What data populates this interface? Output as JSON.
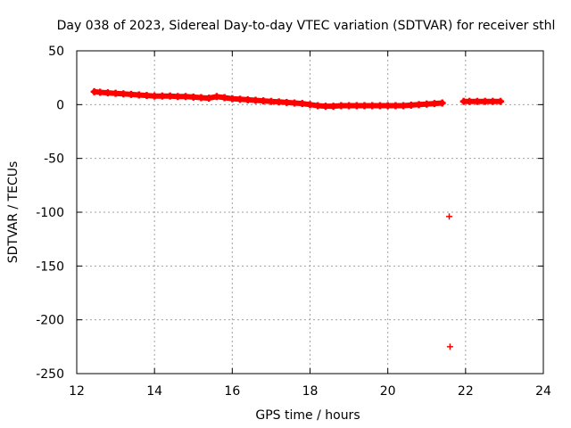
{
  "chart_data": {
    "type": "scatter",
    "title": "Day 038 of 2023, Sidereal Day-to-day VTEC variation (SDTVAR) for receiver sthl",
    "xlabel": "GPS time / hours",
    "ylabel": "SDTVAR / TECUs",
    "xlim": [
      12,
      24
    ],
    "ylim": [
      -250,
      50
    ],
    "x_ticks": [
      12,
      14,
      16,
      18,
      20,
      22,
      24
    ],
    "y_ticks": [
      50,
      0,
      -50,
      -100,
      -150,
      -200,
      -250
    ],
    "x_tick_labels": [
      "12",
      "14",
      "16",
      "18",
      "20",
      "22",
      "24"
    ],
    "y_tick_labels": [
      "50",
      "0",
      "-50",
      "-100",
      "-150",
      "-200",
      "-250"
    ],
    "grid": true,
    "marker": "+",
    "color": "#ff0000",
    "series": [
      {
        "x": [
          12.45,
          12.6,
          12.8,
          13.0,
          13.2,
          13.4,
          13.6,
          13.8,
          14.0,
          14.2,
          14.4,
          14.6,
          14.8,
          15.0,
          15.2,
          15.4,
          15.6,
          15.8,
          16.0,
          16.2,
          16.4,
          16.6,
          16.8,
          17.0,
          17.2,
          17.4,
          17.6,
          17.8,
          18.0,
          18.2,
          18.4,
          18.6,
          18.8,
          19.0,
          19.2,
          19.4,
          19.6,
          19.8,
          20.0,
          20.2,
          20.4,
          20.6,
          20.8,
          21.0,
          21.2,
          21.4,
          21.58,
          21.6,
          21.95,
          22.1,
          22.3,
          22.5,
          22.7,
          22.9
        ],
        "y": [
          12,
          11.5,
          11,
          10.5,
          10,
          9.5,
          9,
          8.5,
          8,
          8,
          8,
          7.5,
          7.5,
          7,
          6.5,
          6,
          7.5,
          6.5,
          5.5,
          5,
          4.5,
          4,
          3.5,
          3,
          2.5,
          2,
          1.5,
          1,
          0,
          -1,
          -1.5,
          -1.5,
          -1,
          -1,
          -1,
          -1,
          -1,
          -1,
          -1,
          -1,
          -1,
          -0.5,
          0,
          0.5,
          1,
          1.5,
          -104,
          -225,
          3,
          3,
          3,
          3,
          3,
          3
        ]
      }
    ]
  }
}
